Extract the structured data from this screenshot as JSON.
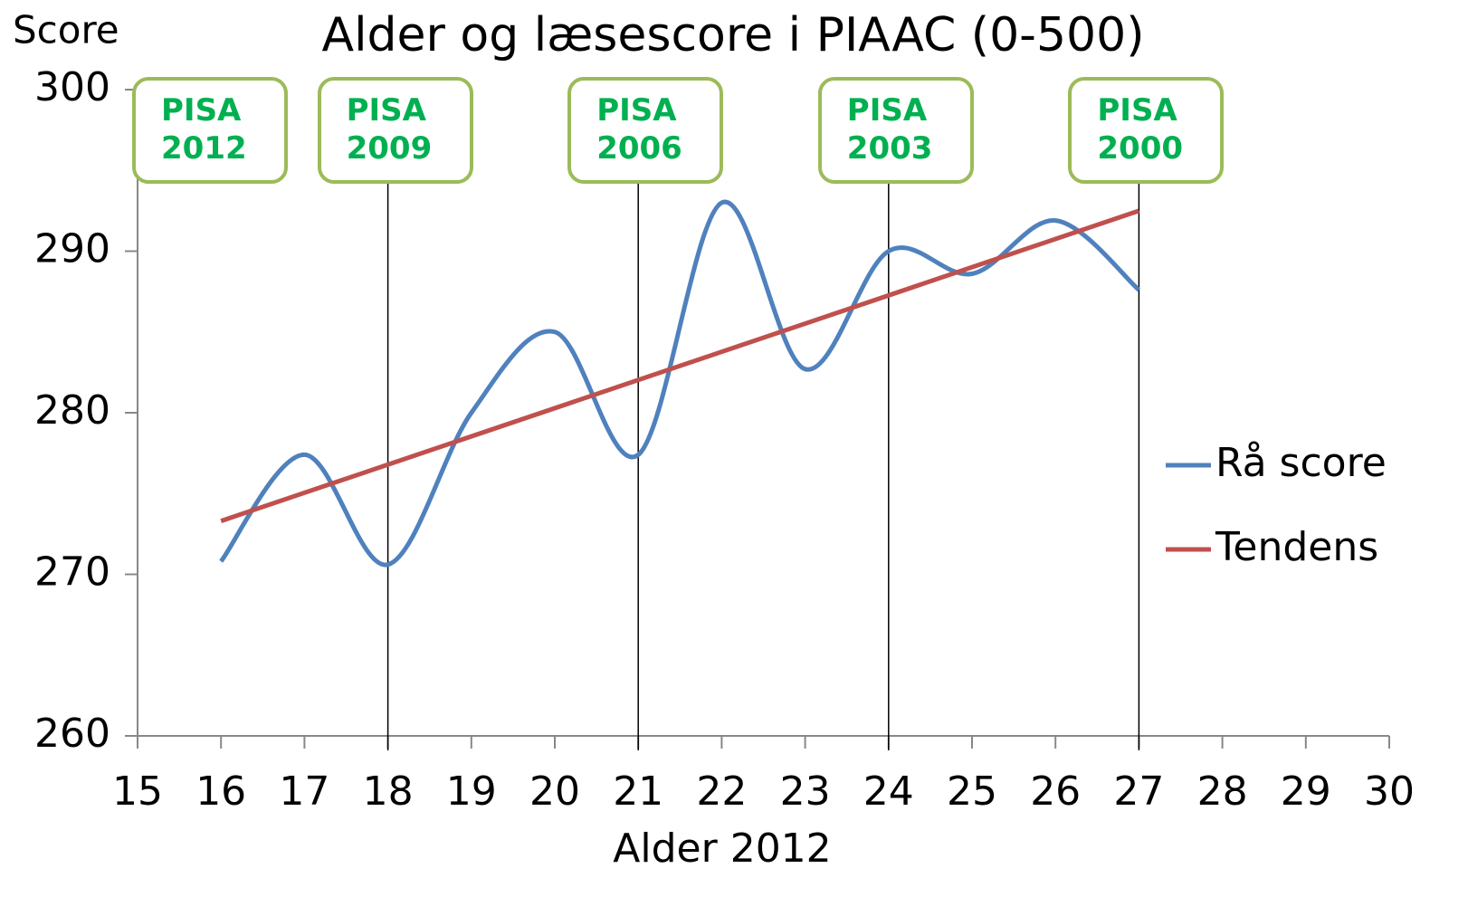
{
  "chart_data": {
    "type": "line",
    "title": "Alder og læsescore i PIAAC (0-500)",
    "y_label": "Score",
    "x_label": "Alder 2012",
    "xlim": [
      15,
      30
    ],
    "xticks": [
      15,
      16,
      17,
      18,
      19,
      20,
      21,
      22,
      23,
      24,
      25,
      26,
      27,
      28,
      29,
      30
    ],
    "ylim": [
      260,
      300
    ],
    "yticks": [
      260,
      270,
      280,
      290,
      300
    ],
    "smooth": true,
    "legend": "right",
    "series": [
      {
        "name": "Rå score",
        "color": "#4f81bd",
        "x": [
          16,
          17,
          18,
          19,
          20,
          21,
          22,
          23,
          24,
          25,
          26,
          27
        ],
        "values": [
          270.8,
          277.4,
          270.6,
          280,
          285,
          277.4,
          293,
          282.7,
          290,
          288.6,
          291.9,
          287.6
        ]
      },
      {
        "name": "Tendens",
        "color": "#c0504d",
        "smooth": false,
        "x": [
          16,
          27
        ],
        "values": [
          273.3,
          292.5
        ]
      }
    ],
    "annotations": [
      {
        "label": "PISA 2012"
      },
      {
        "label": "PISA 2009",
        "x": 18
      },
      {
        "label": "PISA 2006",
        "x": 21
      },
      {
        "label": "PISA 2003",
        "x": 24
      },
      {
        "label": "PISA 2000",
        "x": 27
      }
    ]
  }
}
